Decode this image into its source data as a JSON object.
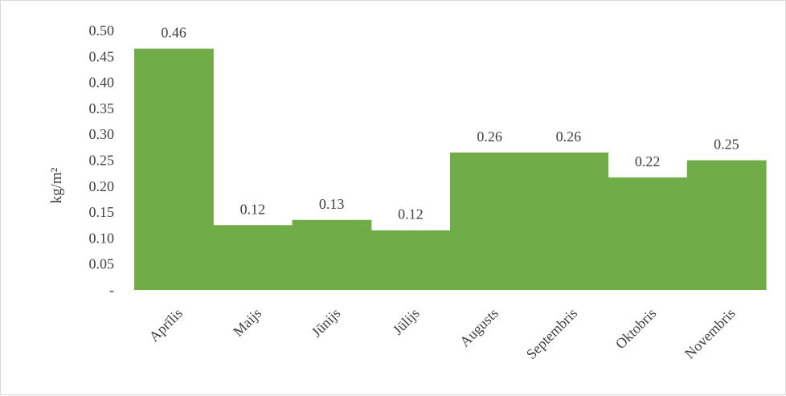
{
  "chart_data": {
    "type": "bar",
    "categories": [
      "Aprīlis",
      "Maijs",
      "Jūnijs",
      "Jūlijs",
      "Augusts",
      "Septembris",
      "Oktobris",
      "Novembris"
    ],
    "values": [
      0.465,
      0.125,
      0.135,
      0.115,
      0.265,
      0.265,
      0.217,
      0.25
    ],
    "data_labels": [
      "0.46",
      "0.12",
      "0.13",
      "0.12",
      "0.26",
      "0.26",
      "0.22",
      "0.25"
    ],
    "y_ticks": [
      "-",
      "0.05",
      "0.10",
      "0.15",
      "0.20",
      "0.25",
      "0.30",
      "0.35",
      "0.40",
      "0.45",
      "0.50"
    ],
    "ylabel": "kg/m²",
    "xlabel": "",
    "title": "",
    "ylim": [
      0,
      0.5
    ],
    "bar_color": "#70ad47",
    "gap_width": 0,
    "grid": false,
    "legend": "none"
  }
}
